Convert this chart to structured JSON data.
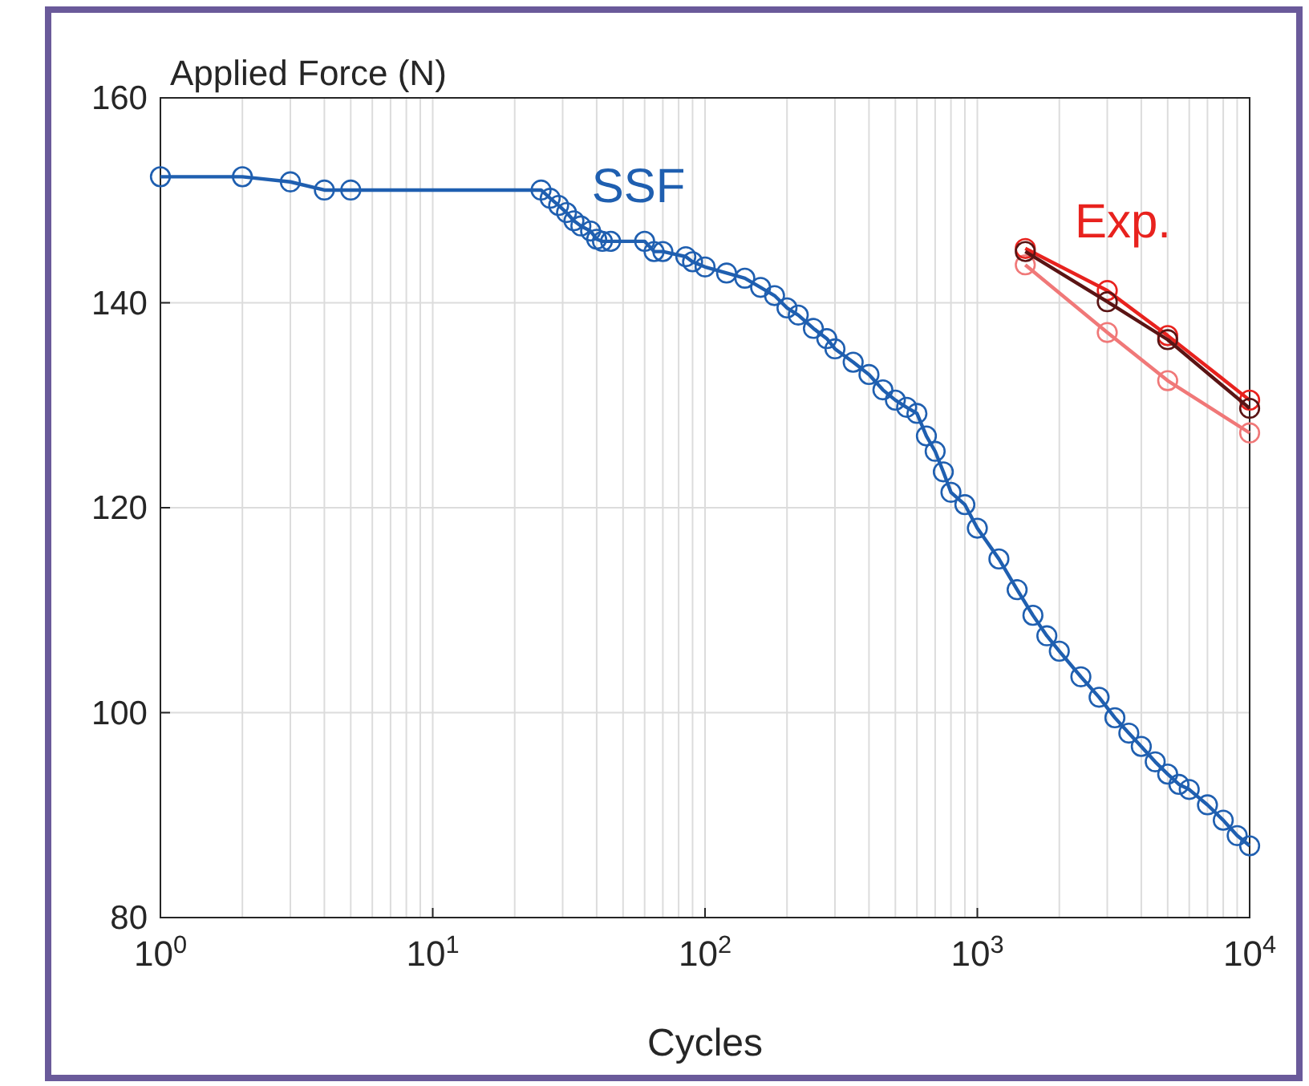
{
  "chart_data": {
    "type": "line",
    "title": "Applied Force (N)",
    "xlabel": "Cycles",
    "log": "x",
    "grid": true,
    "marker": "circle",
    "line_style": "solid",
    "xlim": [
      1,
      10000
    ],
    "xticks": [
      {
        "value": 1,
        "label": "10$^{0}$"
      },
      {
        "value": 10,
        "label": "10$^{1}$"
      },
      {
        "value": 100,
        "label": "10$^{2}$"
      },
      {
        "value": 1000,
        "label": "10$^{3}$"
      },
      {
        "value": 10000,
        "label": "10$^{4}$"
      }
    ],
    "ylim": [
      80,
      160
    ],
    "yticks": [
      80,
      100,
      120,
      140,
      160
    ],
    "series": [
      {
        "color": "#1f5fb0",
        "x": [
          1,
          2,
          3,
          4,
          5,
          25,
          27,
          29,
          31,
          33,
          35,
          38,
          40,
          42,
          45,
          60,
          65,
          70,
          85,
          90,
          100,
          120,
          140,
          160,
          180,
          200,
          220,
          250,
          280,
          300,
          350,
          400,
          450,
          500,
          550,
          600,
          650,
          700,
          750,
          800,
          900,
          1000,
          1200,
          1400,
          1600,
          1800,
          2000,
          2400,
          2800,
          3200,
          3600,
          4000,
          4500,
          5000,
          5500,
          6000,
          7000,
          8000,
          9000,
          10000
        ],
        "values": [
          152.3,
          152.3,
          151.8,
          151,
          151,
          151,
          150.2,
          149.5,
          148.8,
          148,
          147.5,
          147,
          146.2,
          146,
          146,
          146,
          145,
          145,
          144.5,
          144,
          143.5,
          142.9,
          142.4,
          141.5,
          140.7,
          139.5,
          138.8,
          137.5,
          136.5,
          135.5,
          134.2,
          133,
          131.5,
          130.5,
          129.8,
          129.2,
          127,
          125.5,
          123.5,
          121.5,
          120.3,
          118,
          115,
          112,
          109.5,
          107.5,
          106,
          103.5,
          101.5,
          99.5,
          98,
          96.7,
          95.2,
          94,
          93,
          92.5,
          91,
          89.5,
          88,
          87
        ]
      },
      {
        "color": "#f07878",
        "x": [
          1500,
          3000,
          5000,
          10000
        ],
        "values": [
          143.7,
          137.1,
          132.4,
          127.3
        ]
      },
      {
        "color": "#e8221e",
        "x": [
          1500,
          3000,
          5000,
          10000
        ],
        "values": [
          145.3,
          141.2,
          136.8,
          130.5
        ]
      },
      {
        "color": "#5a1414",
        "x": [
          1500,
          3000,
          5000,
          10000
        ],
        "values": [
          145,
          140.1,
          136.4,
          129.7
        ]
      }
    ],
    "annotations": [
      "SSF",
      "Exp."
    ]
  }
}
